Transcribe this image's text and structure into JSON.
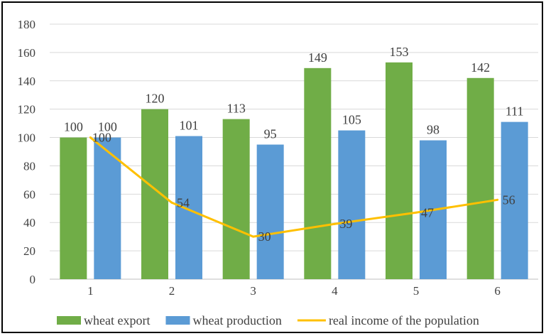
{
  "chart_data": {
    "type": "bar",
    "categories": [
      "1",
      "2",
      "3",
      "4",
      "5",
      "6"
    ],
    "ylim": [
      0,
      180
    ],
    "y_ticks": [
      0,
      20,
      40,
      60,
      80,
      100,
      120,
      140,
      160,
      180
    ],
    "grid": true,
    "legend_position": "bottom",
    "series": [
      {
        "name": "wheat export",
        "type": "bar",
        "color": "#70AD47",
        "values": [
          100,
          120,
          113,
          149,
          153,
          142
        ]
      },
      {
        "name": "wheat production",
        "type": "bar",
        "color": "#5B9BD5",
        "values": [
          100,
          101,
          95,
          105,
          98,
          111
        ]
      },
      {
        "name": "real income of the population",
        "type": "line",
        "color": "#FFC000",
        "values": [
          100,
          54,
          30,
          39,
          47,
          56
        ]
      }
    ]
  }
}
